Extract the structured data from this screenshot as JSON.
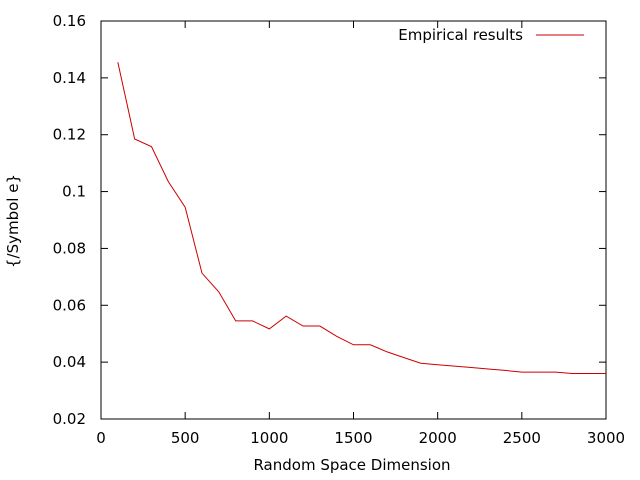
{
  "chart_data": {
    "type": "line",
    "title": "",
    "xlabel": "Random Space Dimension",
    "ylabel": "{/Symbol e}",
    "xlim": [
      0,
      3000
    ],
    "ylim": [
      0.02,
      0.16
    ],
    "xticks": [
      0,
      500,
      1000,
      1500,
      2000,
      2500,
      3000
    ],
    "xtick_labels": [
      "0",
      "500",
      "1000",
      "1500",
      "2000",
      "2500",
      "3000"
    ],
    "yticks": [
      0.02,
      0.04,
      0.06,
      0.08,
      0.1,
      0.12,
      0.14,
      0.16
    ],
    "ytick_labels": [
      "0.02",
      "0.04",
      "0.06",
      "0.08",
      "0.1",
      "0.12",
      "0.14",
      "0.16"
    ],
    "grid": false,
    "legend": {
      "position": "top-right"
    },
    "series": [
      {
        "name": "Empirical results",
        "color": "#cc0000",
        "x": [
          100,
          200,
          300,
          400,
          500,
          600,
          700,
          800,
          900,
          1000,
          1100,
          1200,
          1300,
          1400,
          1500,
          1600,
          1700,
          1800,
          1900,
          2000,
          2100,
          2200,
          2300,
          2400,
          2500,
          2600,
          2700,
          2800,
          2900,
          3000
        ],
        "y": [
          0.1455,
          0.1185,
          0.1158,
          0.1035,
          0.0945,
          0.0713,
          0.0647,
          0.0545,
          0.0545,
          0.0517,
          0.0562,
          0.0527,
          0.0527,
          0.0491,
          0.0461,
          0.0461,
          0.0436,
          0.0416,
          0.0396,
          0.0391,
          0.0386,
          0.0381,
          0.0376,
          0.0371,
          0.0365,
          0.0365,
          0.0365,
          0.036,
          0.036,
          0.036
        ]
      }
    ]
  }
}
